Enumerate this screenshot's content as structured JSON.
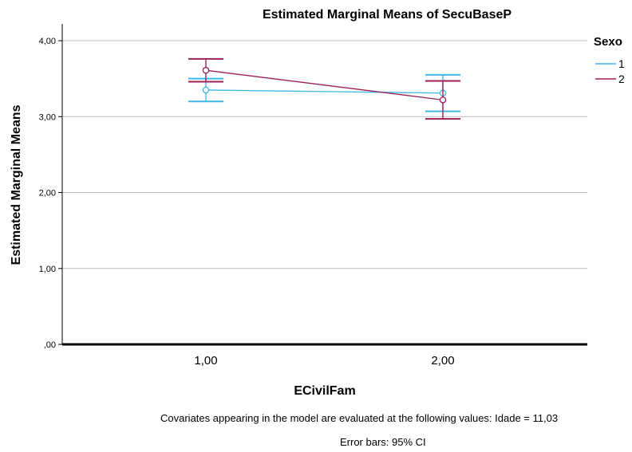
{
  "chart_data": {
    "type": "line",
    "title": "Estimated Marginal Means of SecuBaseP",
    "xlabel": "ECivilFam",
    "ylabel": "Estimated Marginal Means",
    "categories": [
      "1,00",
      "2,00"
    ],
    "y_ticks": [
      ",00",
      "1,00",
      "2,00",
      "3,00",
      "4,00"
    ],
    "y_tick_values": [
      0,
      1,
      2,
      3,
      4
    ],
    "ylim": [
      0,
      4.2
    ],
    "grid": "horizontal",
    "legend": {
      "title": "Sexo",
      "placement": "top-right"
    },
    "series": [
      {
        "name": "1",
        "color": "#3db9e6",
        "values": [
          3.35,
          3.31
        ],
        "ci_low": [
          3.2,
          3.07
        ],
        "ci_high": [
          3.5,
          3.55
        ]
      },
      {
        "name": "2",
        "color": "#9b1f58",
        "values": [
          3.61,
          3.22
        ],
        "ci_low": [
          3.46,
          2.97
        ],
        "ci_high": [
          3.76,
          3.47
        ]
      }
    ]
  },
  "footnotes": {
    "covariates": "Covariates appearing in the model are evaluated at the following values: Idade = 11,03",
    "error_bars": "Error bars: 95% CI"
  }
}
